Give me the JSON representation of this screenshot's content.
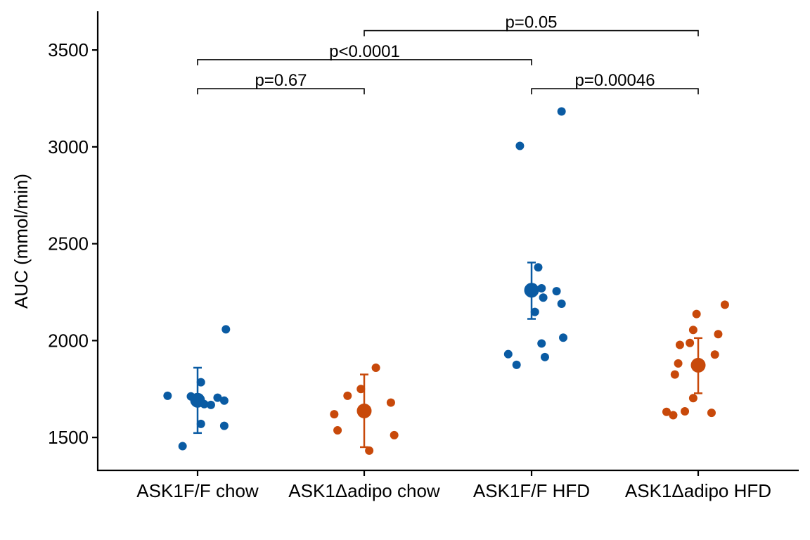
{
  "chart_data": {
    "type": "scatter",
    "title": "",
    "xlabel": "",
    "ylabel": "AUC (mmol/min)",
    "ylim": [
      1330,
      3700
    ],
    "yticks": [
      1500,
      2000,
      2500,
      3000,
      3500
    ],
    "grid": false,
    "legend": "none",
    "categories": [
      "ASK1F/F chow",
      "ASK1Δadipo chow",
      "ASK1F/F HFD",
      "ASK1Δadipo HFD"
    ],
    "colors": [
      "#0A5BA3",
      "#C8490A",
      "#0A5BA3",
      "#C8490A"
    ],
    "groups": [
      {
        "category": "ASK1F/F chow",
        "mean": 1692,
        "err_low": 1523,
        "err_high": 1860,
        "points": [
          [
            -0.18,
            1715
          ],
          [
            0.02,
            1785
          ],
          [
            -0.04,
            1712
          ],
          [
            0.04,
            1672
          ],
          [
            0.08,
            1668
          ],
          [
            -0.09,
            1455
          ],
          [
            0.12,
            1705
          ],
          [
            0.02,
            1570
          ],
          [
            0.16,
            1690
          ],
          [
            0.16,
            1560
          ],
          [
            0.17,
            2058
          ]
        ]
      },
      {
        "category": "ASK1Δadipo chow",
        "mean": 1637,
        "err_low": 1450,
        "err_high": 1825,
        "points": [
          [
            -0.18,
            1620
          ],
          [
            -0.1,
            1715
          ],
          [
            -0.16,
            1537
          ],
          [
            -0.02,
            1750
          ],
          [
            0.07,
            1860
          ],
          [
            0.03,
            1432
          ],
          [
            0.16,
            1680
          ],
          [
            0.18,
            1512
          ]
        ]
      },
      {
        "category": "ASK1F/F HFD",
        "mean": 2260,
        "err_low": 2112,
        "err_high": 2403,
        "points": [
          [
            -0.07,
            3005
          ],
          [
            0.18,
            3183
          ],
          [
            0.04,
            2378
          ],
          [
            0.06,
            2270
          ],
          [
            0.15,
            2255
          ],
          [
            0.07,
            2222
          ],
          [
            0.18,
            2190
          ],
          [
            0.02,
            2148
          ],
          [
            0.06,
            1985
          ],
          [
            0.19,
            2015
          ],
          [
            -0.14,
            1930
          ],
          [
            0.08,
            1915
          ],
          [
            -0.09,
            1875
          ]
        ]
      },
      {
        "category": "ASK1Δadipo HFD",
        "mean": 1873,
        "err_low": 1728,
        "err_high": 2013,
        "points": [
          [
            -0.01,
            2137
          ],
          [
            0.16,
            2185
          ],
          [
            -0.03,
            2055
          ],
          [
            0.12,
            2033
          ],
          [
            -0.05,
            1988
          ],
          [
            -0.11,
            1978
          ],
          [
            -0.12,
            1882
          ],
          [
            0.1,
            1928
          ],
          [
            -0.14,
            1825
          ],
          [
            -0.03,
            1703
          ],
          [
            -0.19,
            1632
          ],
          [
            -0.08,
            1635
          ],
          [
            -0.15,
            1615
          ],
          [
            0.08,
            1627
          ]
        ]
      }
    ],
    "comparisons": [
      {
        "from": 0,
        "to": 1,
        "label": "p=0.67",
        "y": 3300
      },
      {
        "from": 0,
        "to": 2,
        "label": "p<0.0001",
        "y": 3450
      },
      {
        "from": 2,
        "to": 3,
        "label": "p=0.00046",
        "y": 3300
      },
      {
        "from": 1,
        "to": 3,
        "label": "p=0.05",
        "y": 3600
      }
    ]
  }
}
